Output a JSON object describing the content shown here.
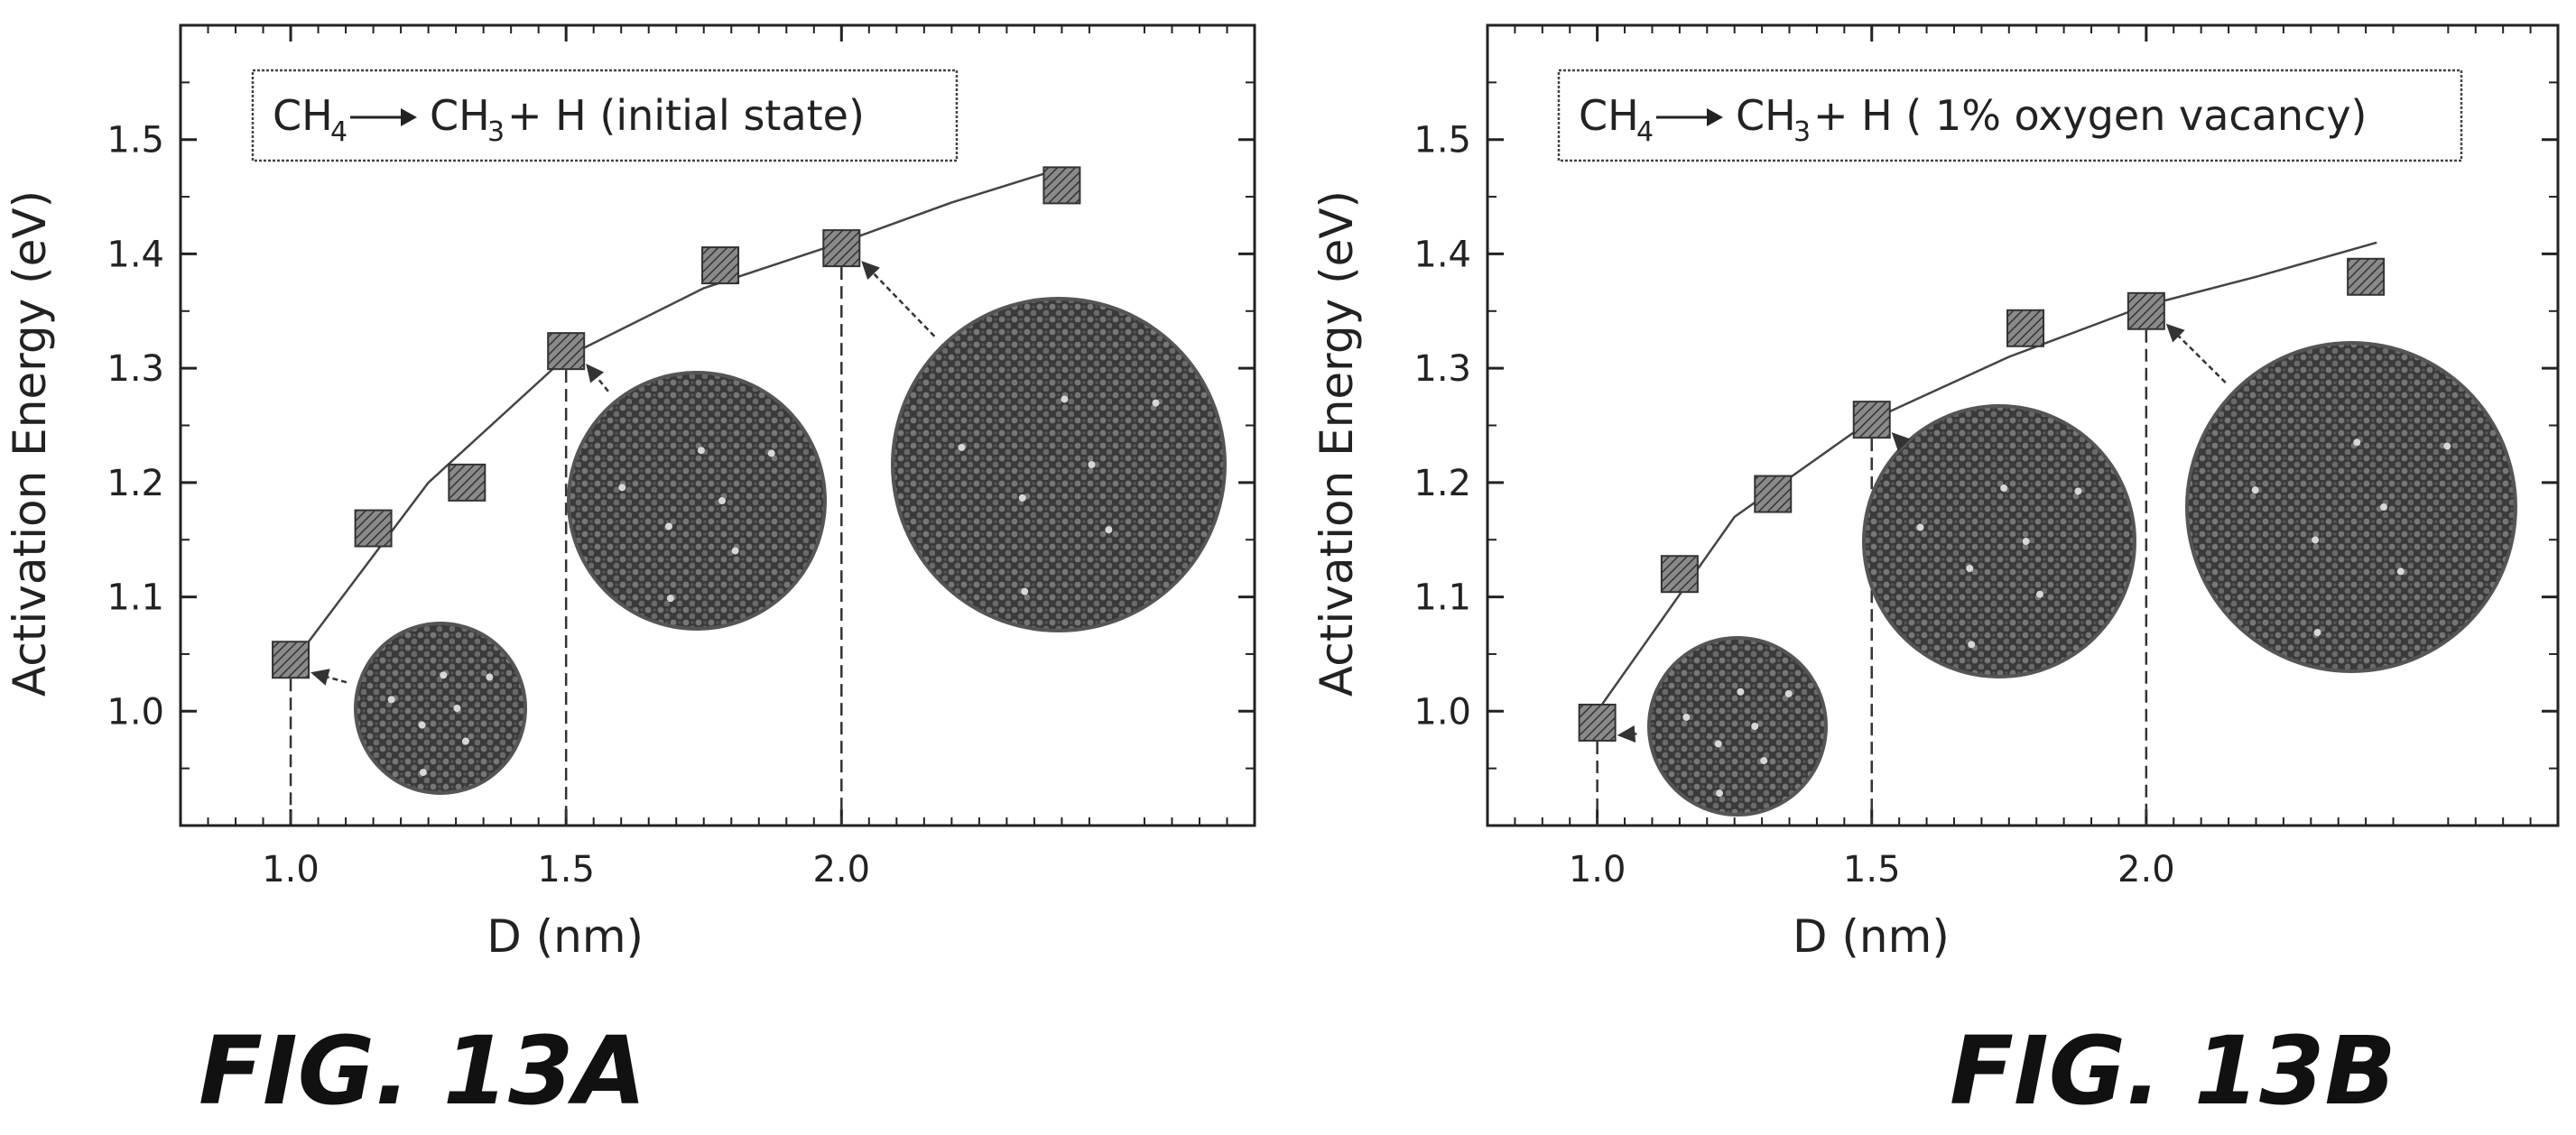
{
  "figures": [
    {
      "caption": "FIG. 13A"
    },
    {
      "caption": "FIG. 13B"
    }
  ],
  "chart_data": [
    {
      "type": "scatter",
      "legend": {
        "reactant": "CH",
        "reactant_sub": "4",
        "product": "CH",
        "product_sub": "3",
        "suffix": "+ H  (initial state)"
      },
      "xlabel": "D (nm)",
      "ylabel": "Activation Energy (eV)",
      "xlim": [
        0.8,
        2.75
      ],
      "ylim": [
        0.9,
        1.6
      ],
      "x_ticks": [
        "1.0",
        "1.5",
        "2.0"
      ],
      "y_ticks": [
        "1.0",
        "1.1",
        "1.2",
        "1.3",
        "1.4",
        "1.5"
      ],
      "series": [
        {
          "x": [
            1.0,
            1.15,
            1.32,
            1.5,
            1.78,
            2.0,
            2.4
          ],
          "y": [
            1.045,
            1.16,
            1.2,
            1.315,
            1.39,
            1.405,
            1.46
          ]
        }
      ],
      "fit_curve": {
        "x": [
          1.0,
          1.25,
          1.5,
          1.75,
          2.0,
          2.2,
          2.4
        ],
        "y": [
          1.04,
          1.2,
          1.31,
          1.37,
          1.41,
          1.445,
          1.475
        ]
      },
      "dropped_lines_x": [
        1.0,
        1.5,
        2.0
      ],
      "particle_images": [
        {
          "label": "particle-1nm",
          "target_x": 1.0,
          "target_y": 1.045
        },
        {
          "label": "particle-1.5nm",
          "target_x": 1.5,
          "target_y": 1.315
        },
        {
          "label": "particle-2nm",
          "target_x": 2.0,
          "target_y": 1.405
        }
      ]
    },
    {
      "type": "scatter",
      "legend": {
        "reactant": "CH",
        "reactant_sub": "4",
        "product": "CH",
        "product_sub": "3",
        "suffix": "+ H ( 1% oxygen vacancy)"
      },
      "xlabel": "D (nm)",
      "ylabel": "Activation Energy (eV)",
      "xlim": [
        0.8,
        2.75
      ],
      "ylim": [
        0.9,
        1.6
      ],
      "x_ticks": [
        "1.0",
        "1.5",
        "2.0"
      ],
      "y_ticks": [
        "1.0",
        "1.1",
        "1.2",
        "1.3",
        "1.4",
        "1.5"
      ],
      "series": [
        {
          "x": [
            1.0,
            1.15,
            1.32,
            1.5,
            1.78,
            2.0,
            2.4
          ],
          "y": [
            0.99,
            1.12,
            1.19,
            1.255,
            1.335,
            1.35,
            1.38
          ]
        }
      ],
      "fit_curve": {
        "x": [
          1.0,
          1.25,
          1.5,
          1.75,
          2.0,
          2.2,
          2.42
        ],
        "y": [
          1.0,
          1.17,
          1.255,
          1.31,
          1.355,
          1.38,
          1.41
        ]
      },
      "dropped_lines_x": [
        1.0,
        1.5,
        2.0
      ],
      "particle_images": [
        {
          "label": "particle-1nm",
          "target_x": 1.0,
          "target_y": 0.99
        },
        {
          "label": "particle-1.5nm",
          "target_x": 1.5,
          "target_y": 1.255
        },
        {
          "label": "particle-2nm",
          "target_x": 2.0,
          "target_y": 1.35
        }
      ]
    }
  ]
}
